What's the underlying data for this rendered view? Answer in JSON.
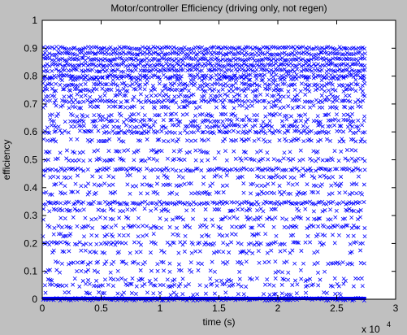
{
  "chart_data": {
    "type": "scatter",
    "title": "Motor/controller Efficiency (driving only, not regen)",
    "xlabel": "time (s)",
    "ylabel": "efficiency",
    "x_exponent_label": "x 10",
    "x_exponent_power": "4",
    "xlim": [
      0,
      30000
    ],
    "ylim": [
      0,
      1
    ],
    "x_ticks": [
      0,
      5000,
      10000,
      15000,
      20000,
      25000,
      30000
    ],
    "x_tick_labels": [
      "0",
      "0.5",
      "1",
      "1.5",
      "2",
      "2.5",
      "3"
    ],
    "y_ticks": [
      0,
      0.1,
      0.2,
      0.3,
      0.4,
      0.5,
      0.6,
      0.7,
      0.8,
      0.9,
      1
    ],
    "y_tick_labels": [
      "0",
      "0.1",
      "0.2",
      "0.3",
      "0.4",
      "0.5",
      "0.6",
      "0.7",
      "0.8",
      "0.9",
      "1"
    ],
    "grid": false,
    "marker": "x",
    "series": [
      {
        "color": "#0000ff",
        "x_range": [
          0,
          27500
        ],
        "bands": [
          {
            "y": 0.0,
            "density": 1.0
          },
          {
            "y": 0.02,
            "density": 0.35
          },
          {
            "y": 0.05,
            "density": 0.45
          },
          {
            "y": 0.07,
            "density": 0.3
          },
          {
            "y": 0.1,
            "density": 0.25
          },
          {
            "y": 0.13,
            "density": 0.35
          },
          {
            "y": 0.17,
            "density": 0.35
          },
          {
            "y": 0.2,
            "density": 0.6
          },
          {
            "y": 0.23,
            "density": 0.35
          },
          {
            "y": 0.26,
            "density": 0.55
          },
          {
            "y": 0.29,
            "density": 0.35
          },
          {
            "y": 0.32,
            "density": 0.45
          },
          {
            "y": 0.345,
            "density": 0.9
          },
          {
            "y": 0.38,
            "density": 0.45
          },
          {
            "y": 0.41,
            "density": 0.35
          },
          {
            "y": 0.44,
            "density": 0.35
          },
          {
            "y": 0.465,
            "density": 0.8
          },
          {
            "y": 0.5,
            "density": 0.5
          },
          {
            "y": 0.53,
            "density": 0.35
          },
          {
            "y": 0.57,
            "density": 0.5
          },
          {
            "y": 0.6,
            "density": 0.7
          },
          {
            "y": 0.62,
            "density": 0.6
          },
          {
            "y": 0.64,
            "density": 0.5
          },
          {
            "y": 0.66,
            "density": 0.45
          },
          {
            "y": 0.69,
            "density": 0.5
          },
          {
            "y": 0.71,
            "density": 0.8
          },
          {
            "y": 0.73,
            "density": 0.45
          },
          {
            "y": 0.75,
            "density": 0.65
          },
          {
            "y": 0.77,
            "density": 0.7
          },
          {
            "y": 0.79,
            "density": 0.6
          },
          {
            "y": 0.8,
            "density": 0.85
          },
          {
            "y": 0.82,
            "density": 0.85
          },
          {
            "y": 0.84,
            "density": 1.0
          },
          {
            "y": 0.86,
            "density": 1.0
          },
          {
            "y": 0.88,
            "density": 1.0
          },
          {
            "y": 0.9,
            "density": 1.0
          }
        ]
      }
    ]
  }
}
